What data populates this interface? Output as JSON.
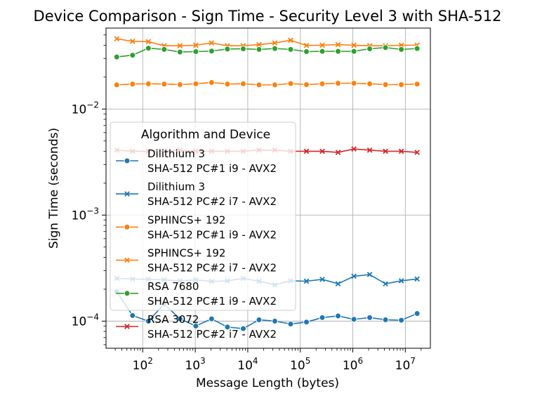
{
  "chart_data": {
    "type": "line",
    "title": "Device Comparison - Sign Time - Security Level 3 with SHA-512",
    "xlabel": "Message Length (bytes)",
    "ylabel": "Sign Time (seconds)",
    "xscale": "log",
    "yscale": "log",
    "xlim": [
      20,
      30000000
    ],
    "ylim": [
      5.55e-05,
      0.058
    ],
    "x_ticks": [
      {
        "base": "10",
        "exp": "2",
        "value": 100
      },
      {
        "base": "10",
        "exp": "3",
        "value": 1000
      },
      {
        "base": "10",
        "exp": "4",
        "value": 10000
      },
      {
        "base": "10",
        "exp": "5",
        "value": 100000
      },
      {
        "base": "10",
        "exp": "6",
        "value": 1000000
      },
      {
        "base": "10",
        "exp": "7",
        "value": 10000000
      }
    ],
    "y_ticks": [
      {
        "base": "10",
        "exp": "−4",
        "value": 0.0001
      },
      {
        "base": "10",
        "exp": "−3",
        "value": 0.001
      },
      {
        "base": "10",
        "exp": "−2",
        "value": 0.01
      }
    ],
    "grid": true,
    "legend": {
      "title": "Algorithm and Device",
      "placement": "center-left"
    },
    "x": [
      32,
      64,
      128,
      256,
      512,
      1024,
      2048,
      4096,
      8192,
      16384,
      32768,
      65536,
      131072,
      262144,
      524288,
      1048576,
      2097152,
      4194304,
      8388608,
      16777216
    ],
    "series": [
      {
        "name": "Dilithium 3\nSHA-512 PC#1 i9 - AVX2",
        "color": "#1f77b4",
        "marker": "circle",
        "values": [
          0.00019,
          0.000113,
          0.0001,
          0.000145,
          0.000105,
          9e-05,
          0.000105,
          8.8e-05,
          8.5e-05,
          0.000103,
          0.0001,
          9.4e-05,
          9.8e-05,
          0.000108,
          0.000112,
          0.000104,
          0.000108,
          0.000103,
          0.000102,
          0.000118
        ]
      },
      {
        "name": "Dilithium 3\nSHA-512 PC#2 i7 - AVX2",
        "color": "#1f77b4",
        "marker": "x",
        "values": [
          0.000253,
          0.00025,
          0.000248,
          0.000245,
          0.00024,
          0.000245,
          0.000237,
          0.00024,
          0.000253,
          0.000238,
          0.00022,
          0.00024,
          0.000238,
          0.000248,
          0.000225,
          0.000265,
          0.000275,
          0.000225,
          0.00024,
          0.00025
        ]
      },
      {
        "name": "SPHINCS+ 192\nSHA-512 PC#1 i9 - AVX2",
        "color": "#ff7f0e",
        "marker": "circle",
        "values": [
          0.0169,
          0.0172,
          0.0173,
          0.0172,
          0.017,
          0.0173,
          0.0178,
          0.0172,
          0.0173,
          0.0169,
          0.0169,
          0.0174,
          0.017,
          0.0173,
          0.0175,
          0.0175,
          0.0173,
          0.017,
          0.017,
          0.0172
        ]
      },
      {
        "name": "SPHINCS+ 192\nSHA-512 PC#2 i7 - AVX2",
        "color": "#ff7f0e",
        "marker": "x",
        "values": [
          0.046,
          0.0435,
          0.0432,
          0.0395,
          0.0395,
          0.04,
          0.042,
          0.0395,
          0.0395,
          0.0405,
          0.042,
          0.0445,
          0.0398,
          0.04,
          0.0405,
          0.04,
          0.0395,
          0.0395,
          0.04,
          0.04
        ]
      },
      {
        "name": "RSA 7680\nSHA-512 PC#1 i9 - AVX2",
        "color": "#2ca02c",
        "marker": "circle",
        "values": [
          0.031,
          0.0322,
          0.0375,
          0.0365,
          0.0345,
          0.0348,
          0.0352,
          0.0368,
          0.037,
          0.0365,
          0.0372,
          0.0365,
          0.0348,
          0.035,
          0.035,
          0.035,
          0.037,
          0.038,
          0.0365,
          0.0372
        ]
      },
      {
        "name": "RSA 3072\nSHA-512 PC#2 i7 - AVX2",
        "color": "#d62728",
        "marker": "x",
        "values": [
          0.0041,
          0.004,
          0.004,
          0.004,
          0.0041,
          0.004,
          0.004,
          0.004,
          0.004,
          0.0041,
          0.0041,
          0.004,
          0.004,
          0.004,
          0.0039,
          0.0042,
          0.0041,
          0.004,
          0.004,
          0.0039
        ]
      }
    ]
  }
}
